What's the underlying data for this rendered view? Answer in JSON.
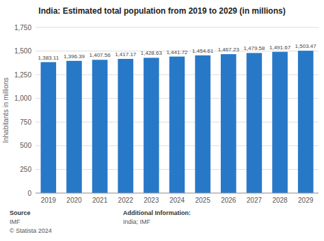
{
  "chart_data": {
    "type": "bar",
    "title": "India: Estimated total population from 2019 to 2029 (in millions)",
    "ylabel": "Inhabitants in millions",
    "categories": [
      "2019",
      "2020",
      "2021",
      "2022",
      "2023",
      "2024",
      "2025",
      "2026",
      "2027",
      "2028",
      "2029"
    ],
    "values": [
      1383.11,
      1396.39,
      1407.56,
      1417.17,
      1428.63,
      1441.72,
      1454.61,
      1467.23,
      1479.58,
      1491.67,
      1503.47
    ],
    "value_labels": [
      "1,383.11",
      "1,396.39",
      "1,407.56",
      "1,417.17",
      "1,428.63",
      "1,441.72",
      "1,454.61",
      "1,467.23",
      "1,479.58",
      "1,491.67",
      "1,503.47"
    ],
    "data_labels": true,
    "color": "#2878c8",
    "ylim": [
      0,
      1750
    ],
    "yticks": [
      0,
      250,
      500,
      750,
      {
        "value": 1000,
        "label": "1,000"
      },
      {
        "value": 1250,
        "label": "1,250"
      },
      {
        "value": 1500,
        "label": "1,500"
      },
      {
        "value": 1750,
        "label": "1,750"
      }
    ],
    "grid": true,
    "annotations": [
      "Source",
      "IMF",
      "© Statista 2024",
      "Additional Information:",
      "India; IMF"
    ]
  }
}
